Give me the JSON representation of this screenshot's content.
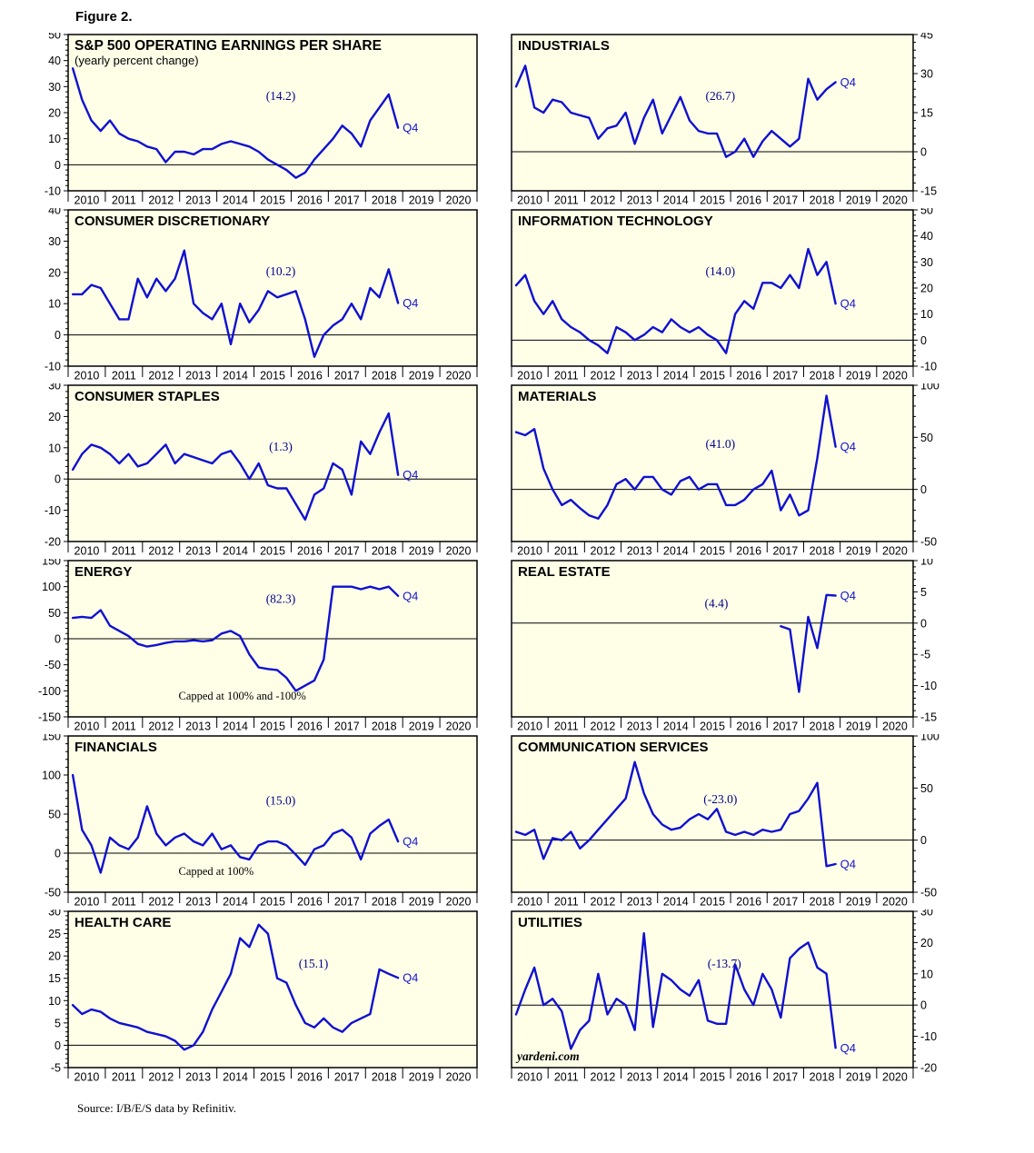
{
  "figure": {
    "label": "Figure 2.",
    "source": "Source: I/B/E/S data by Refinitiv."
  },
  "colors": {
    "line": "#1010D0",
    "plot_bg": "#FFFFE8",
    "annotation": "#00008B",
    "axis": "#000000"
  },
  "x_axis": {
    "range": [
      2010,
      2021
    ],
    "years": [
      "2010",
      "2011",
      "2012",
      "2013",
      "2014",
      "2015",
      "2016",
      "2017",
      "2018",
      "2019",
      "2020"
    ]
  },
  "chart_data": [
    {
      "type": "line",
      "title": "S&P 500 OPERATING EARNINGS PER SHARE",
      "subtitle": "(yearly percent change)",
      "annotation": "(14.2)",
      "annotation_pos": {
        "fx": 0.52,
        "fy": 0.42
      },
      "end_label": "Q4",
      "side": "left",
      "ylim": [
        -10,
        50
      ],
      "ytick_step": 10,
      "series_start": 2010.125,
      "series_step": 0.25,
      "values": [
        37,
        25,
        17,
        13,
        17,
        12,
        10,
        9,
        7,
        6,
        1,
        5,
        5,
        4,
        6,
        6,
        8,
        9,
        8,
        7,
        5,
        2,
        0,
        -2,
        -5,
        -3,
        2,
        6,
        10,
        15,
        12,
        7,
        17,
        22,
        27,
        14.2
      ]
    },
    {
      "type": "line",
      "title": "INDUSTRIALS",
      "annotation": "(26.7)",
      "annotation_pos": {
        "fx": 0.52,
        "fy": 0.42
      },
      "end_label": "Q4",
      "side": "right",
      "ylim": [
        -15,
        45
      ],
      "ytick_step": 15,
      "series_start": 2010.125,
      "series_step": 0.25,
      "values": [
        25,
        33,
        17,
        15,
        20,
        19,
        15,
        14,
        13,
        5,
        9,
        10,
        15,
        3,
        13,
        20,
        7,
        14,
        21,
        12,
        8,
        7,
        7,
        -2,
        0,
        5,
        -2,
        4,
        8,
        5,
        2,
        5,
        28,
        20,
        24,
        26.7
      ]
    },
    {
      "type": "line",
      "title": "CONSUMER DISCRETIONARY",
      "annotation": "(10.2)",
      "annotation_pos": {
        "fx": 0.52,
        "fy": 0.42
      },
      "end_label": "Q4",
      "side": "left",
      "ylim": [
        -10,
        40
      ],
      "ytick_step": 10,
      "series_start": 2010.125,
      "series_step": 0.25,
      "values": [
        13,
        13,
        16,
        15,
        10,
        5,
        5,
        18,
        12,
        18,
        14,
        18,
        27,
        10,
        7,
        5,
        10,
        -3,
        10,
        4,
        8,
        14,
        12,
        13,
        14,
        5,
        -7,
        0,
        3,
        5,
        10,
        5,
        15,
        12,
        21,
        10.2
      ]
    },
    {
      "type": "line",
      "title": "INFORMATION TECHNOLOGY",
      "annotation": "(14.0)",
      "annotation_pos": {
        "fx": 0.52,
        "fy": 0.42
      },
      "end_label": "Q4",
      "side": "right",
      "ylim": [
        -10,
        50
      ],
      "ytick_step": 10,
      "series_start": 2010.125,
      "series_step": 0.25,
      "values": [
        21,
        25,
        15,
        10,
        15,
        8,
        5,
        3,
        0,
        -2,
        -5,
        5,
        3,
        0,
        2,
        5,
        3,
        8,
        5,
        3,
        5,
        2,
        0,
        -5,
        10,
        15,
        12,
        22,
        22,
        20,
        25,
        20,
        35,
        25,
        30,
        14.0
      ]
    },
    {
      "type": "line",
      "title": "CONSUMER STAPLES",
      "annotation": "(1.3)",
      "annotation_pos": {
        "fx": 0.52,
        "fy": 0.42
      },
      "end_label": "Q4",
      "side": "left",
      "ylim": [
        -20,
        30
      ],
      "ytick_step": 10,
      "series_start": 2010.125,
      "series_step": 0.25,
      "values": [
        3,
        8,
        11,
        10,
        8,
        5,
        8,
        4,
        5,
        8,
        11,
        5,
        8,
        7,
        6,
        5,
        8,
        9,
        5,
        0,
        5,
        -2,
        -3,
        -3,
        -8,
        -13,
        -5,
        -3,
        5,
        3,
        -5,
        12,
        8,
        15,
        21,
        1.3
      ]
    },
    {
      "type": "line",
      "title": "MATERIALS",
      "annotation": "(41.0)",
      "annotation_pos": {
        "fx": 0.52,
        "fy": 0.4
      },
      "end_label": "Q4",
      "side": "right",
      "ylim": [
        -50,
        100
      ],
      "ytick_step": 50,
      "series_start": 2010.125,
      "series_step": 0.25,
      "values": [
        55,
        52,
        58,
        20,
        0,
        -15,
        -10,
        -18,
        -25,
        -28,
        -15,
        5,
        10,
        0,
        12,
        12,
        0,
        -5,
        8,
        12,
        0,
        5,
        5,
        -15,
        -15,
        -10,
        0,
        5,
        18,
        -20,
        -5,
        -25,
        -20,
        30,
        90,
        41.0
      ]
    },
    {
      "type": "line",
      "title": "ENERGY",
      "annotation": "(82.3)",
      "annotation_pos": {
        "fx": 0.52,
        "fy": 0.27
      },
      "end_label": "Q4",
      "side": "left",
      "ylim": [
        -150,
        150
      ],
      "ytick_step": 50,
      "note": "Capped at 100% and -100%",
      "note_pos": {
        "fx": 0.27,
        "fy": 0.89
      },
      "series_start": 2010.125,
      "series_step": 0.25,
      "values": [
        40,
        42,
        40,
        55,
        25,
        15,
        5,
        -10,
        -15,
        -12,
        -8,
        -5,
        -5,
        -3,
        -5,
        -3,
        10,
        15,
        5,
        -30,
        -55,
        -58,
        -60,
        -75,
        -100,
        -90,
        -80,
        -40,
        100,
        100,
        100,
        95,
        100,
        95,
        100,
        82.3
      ]
    },
    {
      "type": "line",
      "title": "REAL ESTATE",
      "annotation": "(4.4)",
      "annotation_pos": {
        "fx": 0.51,
        "fy": 0.3
      },
      "end_label": "Q4",
      "side": "right",
      "ylim": [
        -15,
        10
      ],
      "ytick_step": 5,
      "series_start": 2017.375,
      "series_step": 0.25,
      "values": [
        -0.5,
        -1,
        -11,
        1,
        -4,
        4.5,
        4.4
      ]
    },
    {
      "type": "line",
      "title": "FINANCIALS",
      "annotation": "(15.0)",
      "annotation_pos": {
        "fx": 0.52,
        "fy": 0.44
      },
      "end_label": "Q4",
      "side": "left",
      "ylim": [
        -50,
        150
      ],
      "ytick_step": 50,
      "note": "Capped at 100%",
      "note_pos": {
        "fx": 0.27,
        "fy": 0.89
      },
      "series_start": 2010.125,
      "series_step": 0.25,
      "values": [
        100,
        30,
        10,
        -25,
        20,
        10,
        5,
        20,
        60,
        25,
        10,
        20,
        25,
        15,
        10,
        25,
        5,
        10,
        -5,
        -8,
        10,
        15,
        15,
        10,
        -2,
        -15,
        5,
        10,
        25,
        30,
        20,
        -8,
        25,
        35,
        43,
        15.0
      ]
    },
    {
      "type": "line",
      "title": "COMMUNICATION SERVICES",
      "annotation": "(-23.0)",
      "annotation_pos": {
        "fx": 0.52,
        "fy": 0.43
      },
      "end_label": "Q4",
      "side": "right",
      "ylim": [
        -50,
        100
      ],
      "ytick_step": 50,
      "series_start": 2010.125,
      "series_step": 0.25,
      "values": [
        8,
        5,
        10,
        -18,
        2,
        0,
        8,
        -8,
        0,
        10,
        20,
        30,
        40,
        75,
        45,
        25,
        15,
        10,
        12,
        20,
        25,
        20,
        30,
        8,
        5,
        8,
        5,
        10,
        8,
        10,
        25,
        28,
        40,
        55,
        -25,
        -23.0
      ]
    },
    {
      "type": "line",
      "title": "HEALTH CARE",
      "annotation": "(15.1)",
      "annotation_pos": {
        "fx": 0.6,
        "fy": 0.36
      },
      "end_label": "Q4",
      "side": "left",
      "ylim": [
        -5,
        30
      ],
      "ytick_step": 5,
      "series_start": 2010.125,
      "series_step": 0.25,
      "values": [
        9,
        7,
        8,
        7.5,
        6,
        5,
        4.5,
        4,
        3,
        2.5,
        2,
        1,
        -1,
        0,
        3,
        8,
        12,
        16,
        24,
        22,
        27,
        25,
        15,
        14,
        9,
        5,
        4,
        6,
        4,
        3,
        5,
        6,
        7,
        17,
        16,
        15.1
      ]
    },
    {
      "type": "line",
      "title": "UTILITIES",
      "annotation": "(-13.7)",
      "annotation_pos": {
        "fx": 0.53,
        "fy": 0.36
      },
      "end_label": "Q4",
      "side": "right",
      "ylim": [
        -20,
        30
      ],
      "ytick_step": 10,
      "watermark": "yardeni.com",
      "series_start": 2010.125,
      "series_step": 0.25,
      "values": [
        -3,
        5,
        12,
        0,
        2,
        -2,
        -14,
        -8,
        -5,
        10,
        -3,
        2,
        0,
        -8,
        23,
        -7,
        10,
        8,
        5,
        3,
        8,
        -5,
        -6,
        -6,
        13,
        5,
        0,
        10,
        5,
        -4,
        15,
        18,
        20,
        12,
        10,
        -13.7
      ]
    }
  ]
}
